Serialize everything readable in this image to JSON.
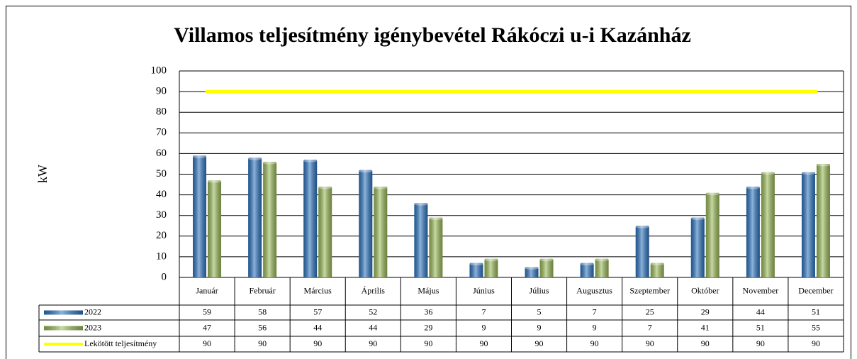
{
  "chart_data": {
    "type": "bar",
    "title": "Villamos teljesítmény igénybevétel Rákóczi u-i Kazánház",
    "y_label": "kW",
    "categories": [
      "Január",
      "Február",
      "Március",
      "Április",
      "Május",
      "Június",
      "Július",
      "Augusztus",
      "Szeptember",
      "Október",
      "November",
      "December"
    ],
    "series": [
      {
        "name": "2022",
        "type": "bar",
        "color": "#2e75c0",
        "values": [
          59,
          58,
          57,
          52,
          36,
          7,
          5,
          7,
          25,
          29,
          44,
          51
        ]
      },
      {
        "name": "2023",
        "type": "bar",
        "color": "#9bbb59",
        "values": [
          47,
          56,
          44,
          44,
          29,
          9,
          9,
          9,
          7,
          41,
          51,
          55
        ]
      },
      {
        "name": "Lekötött teljesítmény",
        "type": "line",
        "color": "#ffff00",
        "values": [
          90,
          90,
          90,
          90,
          90,
          90,
          90,
          90,
          90,
          90,
          90,
          90
        ]
      }
    ],
    "ylim": [
      0,
      100
    ],
    "yticks": [
      0,
      10,
      20,
      30,
      40,
      50,
      60,
      70,
      80,
      90,
      100
    ],
    "grid": true,
    "data_table": true
  }
}
